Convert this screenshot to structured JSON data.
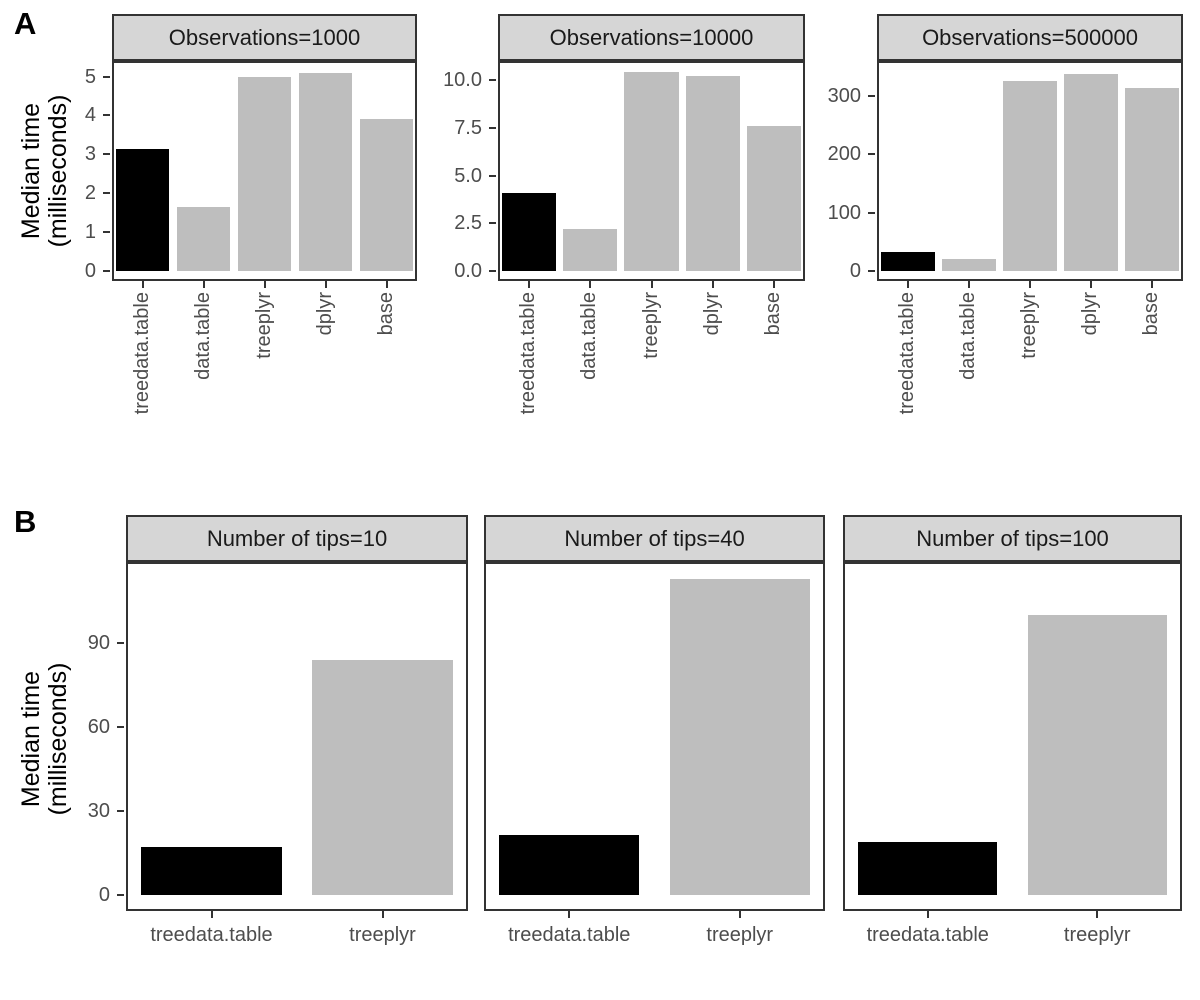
{
  "figure": {
    "background": "#ffffff",
    "colors": {
      "highlight_bar": "#000000",
      "default_bar": "#bebebe",
      "strip_background": "#d6d6d6",
      "panel_border": "#333333",
      "axis_text": "#4d4d4d",
      "strip_text": "#1a1a1a"
    }
  },
  "chart_data": [
    {
      "type": "bar",
      "panel_label": "A",
      "ylabel": [
        "Median time",
        "(milliseconds)"
      ],
      "categories": [
        "treedata.table",
        "data.table",
        "treeplyr",
        "dplyr",
        "base"
      ],
      "highlight_category": "treedata.table",
      "shared_y": false,
      "x_tick_label_rotation": 90,
      "facets": [
        {
          "title": "Observations=1000",
          "values": [
            3.15,
            1.65,
            5.0,
            5.1,
            3.9
          ],
          "yticks": [
            {
              "v": 0,
              "label": "0"
            },
            {
              "v": 1,
              "label": "1"
            },
            {
              "v": 2,
              "label": "2"
            },
            {
              "v": 3,
              "label": "3"
            },
            {
              "v": 4,
              "label": "4"
            },
            {
              "v": 5,
              "label": "5"
            }
          ],
          "ylim": [
            0,
            5.4
          ]
        },
        {
          "title": "Observations=10000",
          "values": [
            4.1,
            2.2,
            10.4,
            10.2,
            7.6
          ],
          "yticks": [
            {
              "v": 0,
              "label": "0.0"
            },
            {
              "v": 2.5,
              "label": "2.5"
            },
            {
              "v": 5,
              "label": "5.0"
            },
            {
              "v": 7.5,
              "label": "7.5"
            },
            {
              "v": 10,
              "label": "10.0"
            }
          ],
          "ylim": [
            0,
            11.0
          ]
        },
        {
          "title": "Observations=500000",
          "values": [
            33,
            21,
            325,
            337,
            314
          ],
          "yticks": [
            {
              "v": 0,
              "label": "0"
            },
            {
              "v": 100,
              "label": "100"
            },
            {
              "v": 200,
              "label": "200"
            },
            {
              "v": 300,
              "label": "300"
            }
          ],
          "ylim": [
            0,
            360
          ]
        }
      ]
    },
    {
      "type": "bar",
      "panel_label": "B",
      "ylabel": [
        "Median time",
        "(milliseconds)"
      ],
      "categories": [
        "treedata.table",
        "treeplyr"
      ],
      "highlight_category": "treedata.table",
      "shared_y": true,
      "x_tick_label_rotation": 0,
      "yticks": [
        {
          "v": 0,
          "label": "0"
        },
        {
          "v": 30,
          "label": "30"
        },
        {
          "v": 60,
          "label": "60"
        },
        {
          "v": 90,
          "label": "90"
        }
      ],
      "ylim": [
        0,
        119
      ],
      "facets": [
        {
          "title": "Number of tips=10",
          "values": [
            17,
            84
          ]
        },
        {
          "title": "Number of tips=40",
          "values": [
            21.5,
            113
          ]
        },
        {
          "title": "Number of tips=100",
          "values": [
            19,
            100
          ]
        }
      ]
    }
  ]
}
